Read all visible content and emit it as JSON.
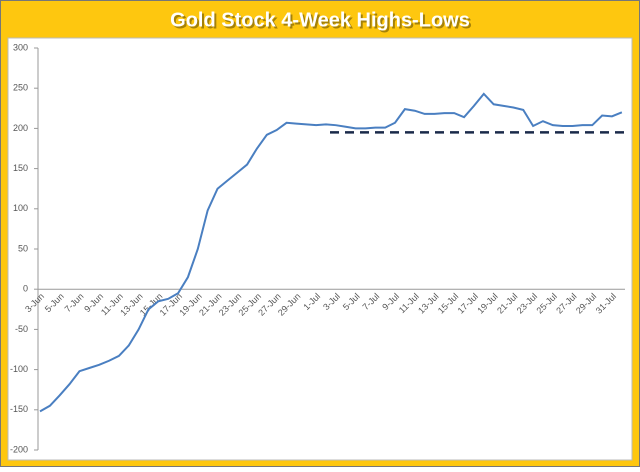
{
  "chart_data": {
    "type": "line",
    "title": "Gold Stock 4-Week Highs-Lows",
    "categories": [
      "3-Jun",
      null,
      "5-Jun",
      null,
      "7-Jun",
      null,
      "9-Jun",
      null,
      "11-Jun",
      null,
      "13-Jun",
      null,
      "15-Jun",
      null,
      "17-Jun",
      null,
      "19-Jun",
      null,
      "21-Jun",
      null,
      "23-Jun",
      null,
      "25-Jun",
      null,
      "27-Jun",
      null,
      "29-Jun",
      null,
      "1-Jul",
      null,
      "3-Jul",
      null,
      "5-Jul",
      null,
      "7-Jul",
      null,
      "9-Jul",
      null,
      "11-Jul",
      null,
      "13-Jul",
      null,
      "15-Jul",
      null,
      "17-Jul",
      null,
      "19-Jul",
      null,
      "21-Jul",
      null,
      "23-Jul",
      null,
      "25-Jul",
      null,
      "27-Jul",
      null,
      "29-Jul",
      null,
      "31-Jul",
      null
    ],
    "series": [
      {
        "name": "Highs-Lows",
        "color": "#4a7fc1",
        "values": [
          -152,
          -145,
          -132,
          -118,
          -102,
          -98,
          -94,
          -89,
          -83,
          -70,
          -50,
          -25,
          -15,
          -12,
          -5,
          15,
          50,
          98,
          125,
          135,
          145,
          155,
          175,
          192,
          198,
          207,
          206,
          205,
          204,
          205,
          204,
          202,
          200,
          200,
          201,
          201,
          207,
          224,
          222,
          218,
          218,
          219,
          219,
          214,
          228,
          243,
          230,
          228,
          226,
          223,
          203,
          209,
          204,
          203,
          203,
          204,
          204,
          216,
          215,
          220
        ]
      }
    ],
    "reference_line": 195,
    "ylim": [
      -200,
      300
    ],
    "yticks": [
      -200,
      -150,
      -100,
      -50,
      0,
      50,
      100,
      150,
      200,
      250,
      300
    ],
    "grid": false
  }
}
